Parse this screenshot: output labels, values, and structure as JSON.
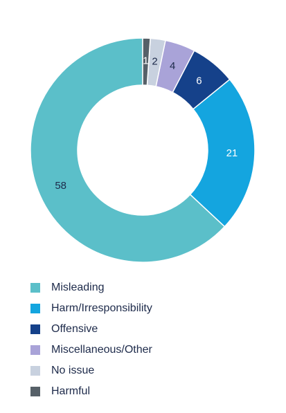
{
  "chart_data": {
    "type": "pie",
    "title": "",
    "categories": [
      "Misleading",
      "Harm/Irresponsibility",
      "Offensive",
      "Miscellaneous/Other",
      "No issue",
      "Harmful"
    ],
    "values": [
      58,
      21,
      6,
      4,
      2,
      1
    ],
    "colors": [
      "#5bbfc9",
      "#14a5df",
      "#15418a",
      "#a9a3d8",
      "#c8d1df",
      "#566068"
    ],
    "label_colors": [
      "#1d2a4a",
      "#ffffff",
      "#ffffff",
      "#1d2a4a",
      "#1d2a4a",
      "#ffffff"
    ],
    "donut": true,
    "start_angle": "top",
    "direction": "clockwise",
    "legend_position": "bottom-left"
  }
}
